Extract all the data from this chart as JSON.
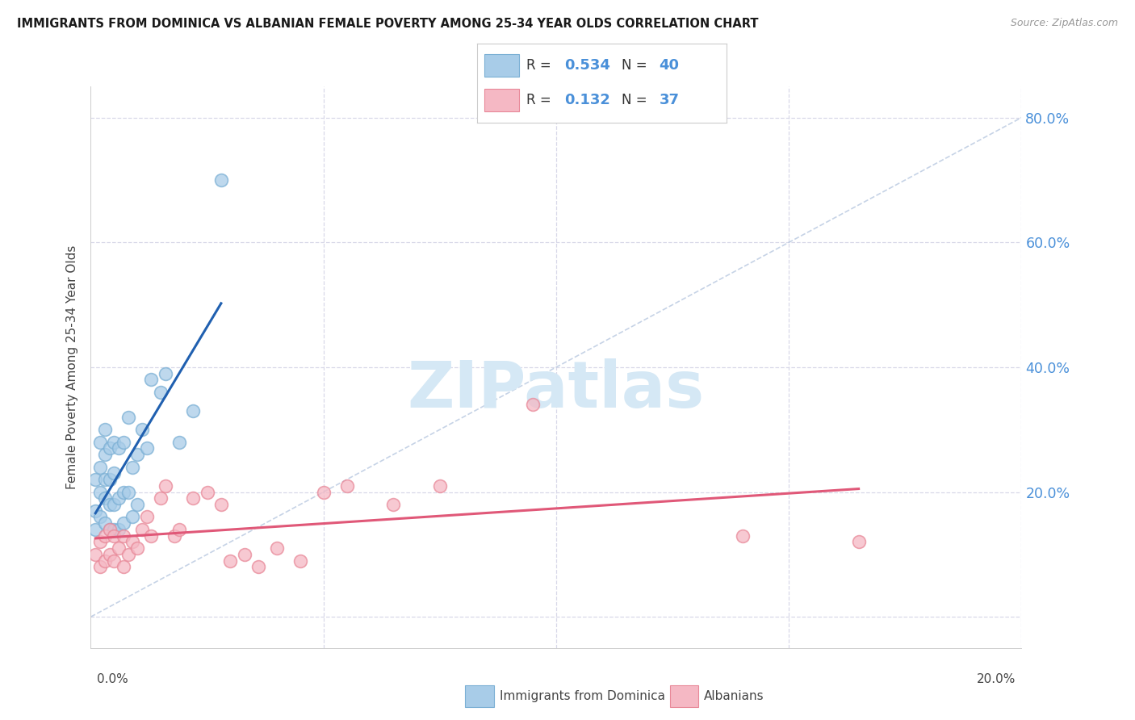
{
  "title": "IMMIGRANTS FROM DOMINICA VS ALBANIAN FEMALE POVERTY AMONG 25-34 YEAR OLDS CORRELATION CHART",
  "source": "Source: ZipAtlas.com",
  "ylabel": "Female Poverty Among 25-34 Year Olds",
  "xlim": [
    0.0,
    0.2
  ],
  "ylim": [
    -0.05,
    0.85
  ],
  "yticks": [
    0.0,
    0.2,
    0.4,
    0.6,
    0.8
  ],
  "ytick_labels": [
    "",
    "20.0%",
    "40.0%",
    "60.0%",
    "80.0%"
  ],
  "legend_blue_label": "Immigrants from Dominica",
  "legend_pink_label": "Albanians",
  "R_blue": "0.534",
  "N_blue": "40",
  "R_pink": "0.132",
  "N_pink": "37",
  "blue_color": "#a8cce8",
  "blue_edge_color": "#7aafd4",
  "blue_line_color": "#2060b0",
  "pink_color": "#f5b8c4",
  "pink_edge_color": "#e88898",
  "pink_line_color": "#e05878",
  "diag_color": "#b8c8e0",
  "background_color": "#ffffff",
  "grid_color": "#d8d8e8",
  "blue_scatter_x": [
    0.001,
    0.001,
    0.001,
    0.002,
    0.002,
    0.002,
    0.002,
    0.003,
    0.003,
    0.003,
    0.003,
    0.003,
    0.004,
    0.004,
    0.004,
    0.004,
    0.005,
    0.005,
    0.005,
    0.005,
    0.006,
    0.006,
    0.006,
    0.007,
    0.007,
    0.007,
    0.008,
    0.008,
    0.009,
    0.009,
    0.01,
    0.01,
    0.011,
    0.012,
    0.013,
    0.015,
    0.016,
    0.019,
    0.022,
    0.028
  ],
  "blue_scatter_y": [
    0.14,
    0.17,
    0.22,
    0.16,
    0.2,
    0.24,
    0.28,
    0.15,
    0.19,
    0.22,
    0.26,
    0.3,
    0.14,
    0.18,
    0.22,
    0.27,
    0.14,
    0.18,
    0.23,
    0.28,
    0.14,
    0.19,
    0.27,
    0.15,
    0.2,
    0.28,
    0.2,
    0.32,
    0.16,
    0.24,
    0.18,
    0.26,
    0.3,
    0.27,
    0.38,
    0.36,
    0.39,
    0.28,
    0.33,
    0.7
  ],
  "pink_scatter_x": [
    0.001,
    0.002,
    0.002,
    0.003,
    0.003,
    0.004,
    0.004,
    0.005,
    0.005,
    0.006,
    0.007,
    0.007,
    0.008,
    0.009,
    0.01,
    0.011,
    0.012,
    0.013,
    0.015,
    0.016,
    0.018,
    0.019,
    0.022,
    0.025,
    0.028,
    0.03,
    0.033,
    0.036,
    0.04,
    0.045,
    0.05,
    0.055,
    0.065,
    0.075,
    0.095,
    0.14,
    0.165
  ],
  "pink_scatter_y": [
    0.1,
    0.08,
    0.12,
    0.09,
    0.13,
    0.1,
    0.14,
    0.09,
    0.13,
    0.11,
    0.08,
    0.13,
    0.1,
    0.12,
    0.11,
    0.14,
    0.16,
    0.13,
    0.19,
    0.21,
    0.13,
    0.14,
    0.19,
    0.2,
    0.18,
    0.09,
    0.1,
    0.08,
    0.11,
    0.09,
    0.2,
    0.21,
    0.18,
    0.21,
    0.34,
    0.13,
    0.12
  ],
  "watermark_text": "ZIPatlas",
  "watermark_color": "#d5e8f5"
}
